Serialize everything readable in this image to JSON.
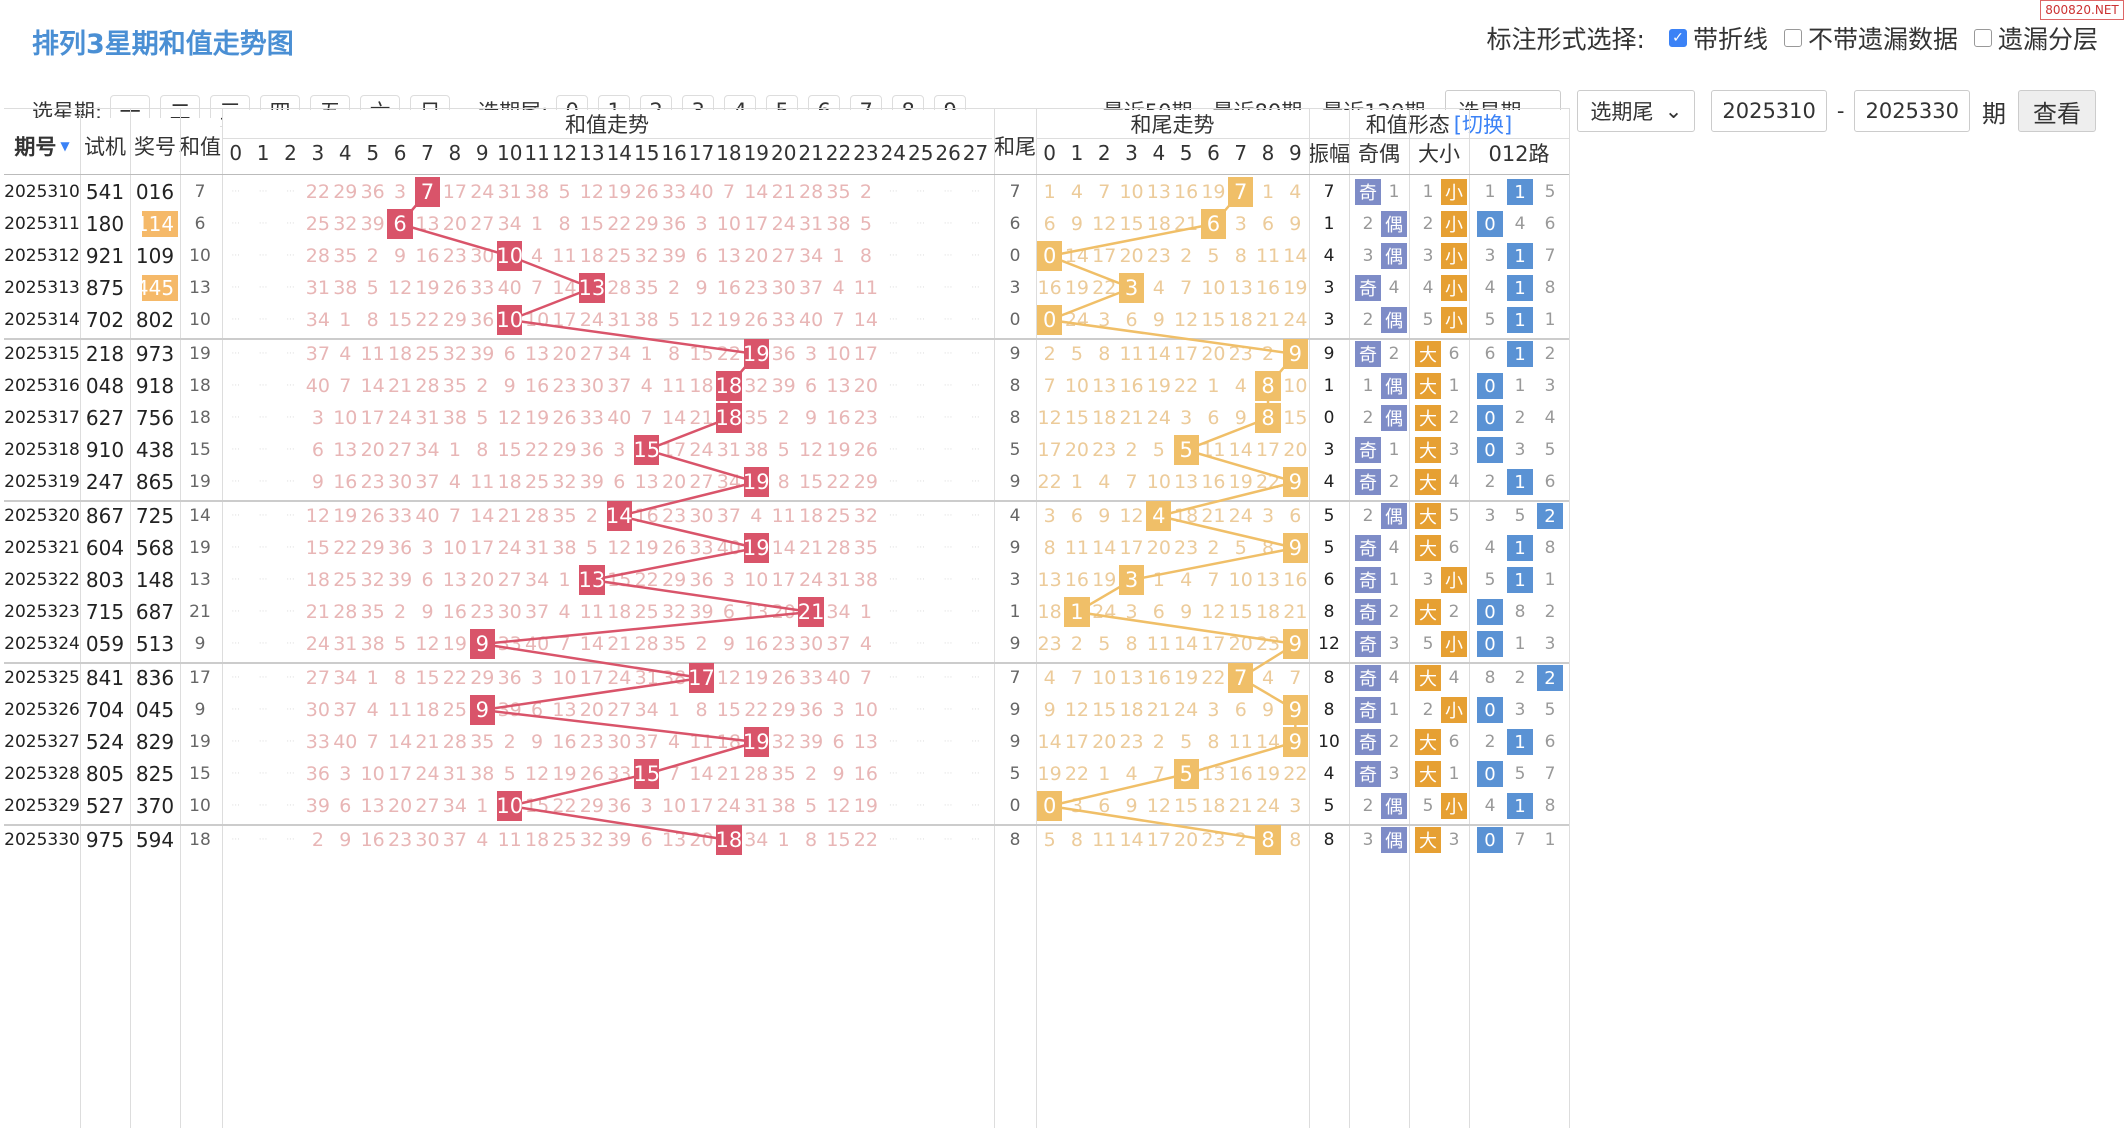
{
  "header": {
    "title": "排列3星期和值走势图",
    "options_label": "标注形式选择:",
    "opt_line": "带折线",
    "opt_no_missing": "不带遗漏数据",
    "opt_missing_layer": "遗漏分层",
    "watermark": "800820.NET"
  },
  "filter": {
    "week_label": "选星期:",
    "week_days": [
      "一",
      "二",
      "三",
      "四",
      "五",
      "六",
      "日"
    ],
    "tail_label": "选期尾:",
    "tails": [
      "0",
      "1",
      "2",
      "3",
      "4",
      "5",
      "6",
      "7",
      "8",
      "9"
    ],
    "quick": [
      "最近50期",
      "最近80期",
      "最近120期"
    ],
    "select_week": "选星期",
    "select_tail": "选期尾",
    "from": "2025310",
    "to": "2025330",
    "dash": "-",
    "unit": "期",
    "view": "查看"
  },
  "table": {
    "h_issue": "期号",
    "h_test": "试机",
    "h_prize": "奖号",
    "h_sum": "和值",
    "h_sumtrend": "和值走势",
    "h_tail": "和尾",
    "h_tailtrend": "和尾走势",
    "h_form": "和值形态",
    "h_switch": "[切换]",
    "h_amp": "振幅",
    "h_oe": "奇偶",
    "h_bs": "大小",
    "h_012": "012路",
    "sum_cols": [
      "0",
      "1",
      "2",
      "3",
      "4",
      "5",
      "6",
      "7",
      "8",
      "9",
      "10",
      "11",
      "12",
      "13",
      "14",
      "15",
      "16",
      "17",
      "18",
      "19",
      "20",
      "21",
      "22",
      "23",
      "24",
      "25",
      "26",
      "27"
    ],
    "tail_cols": [
      "0",
      "1",
      "2",
      "3",
      "4",
      "5",
      "6",
      "7",
      "8",
      "9"
    ],
    "rows": [
      {
        "issue": "2025310",
        "test": "541",
        "prize": "016",
        "sum": 7,
        "tail": 7,
        "amp": "7",
        "oe": "奇",
        "bs": "小",
        "r": 1
      },
      {
        "issue": "2025311",
        "test": "180",
        "prize": "114",
        "sum": 6,
        "tail": 6,
        "amp": "1",
        "oe": "偶",
        "bs": "小",
        "r": 0,
        "hl": true
      },
      {
        "issue": "2025312",
        "test": "921",
        "prize": "109",
        "sum": 10,
        "tail": 0,
        "amp": "4",
        "oe": "偶",
        "bs": "小",
        "r": 1
      },
      {
        "issue": "2025313",
        "test": "875",
        "prize": "445",
        "sum": 13,
        "tail": 3,
        "amp": "3",
        "oe": "奇",
        "bs": "小",
        "r": 1,
        "hl": true
      },
      {
        "issue": "2025314",
        "test": "702",
        "prize": "802",
        "sum": 10,
        "tail": 0,
        "amp": "3",
        "oe": "偶",
        "bs": "小",
        "r": 1
      },
      {
        "issue": "2025315",
        "test": "218",
        "prize": "973",
        "sum": 19,
        "tail": 9,
        "amp": "9",
        "oe": "奇",
        "bs": "大",
        "r": 1
      },
      {
        "issue": "2025316",
        "test": "048",
        "prize": "918",
        "sum": 18,
        "tail": 8,
        "amp": "1",
        "oe": "偶",
        "bs": "大",
        "r": 0
      },
      {
        "issue": "2025317",
        "test": "627",
        "prize": "756",
        "sum": 18,
        "tail": 8,
        "amp": "0",
        "oe": "偶",
        "bs": "大",
        "r": 0
      },
      {
        "issue": "2025318",
        "test": "910",
        "prize": "438",
        "sum": 15,
        "tail": 5,
        "amp": "3",
        "oe": "奇",
        "bs": "大",
        "r": 0
      },
      {
        "issue": "2025319",
        "test": "247",
        "prize": "865",
        "sum": 19,
        "tail": 9,
        "amp": "4",
        "oe": "奇",
        "bs": "大",
        "r": 1
      },
      {
        "issue": "2025320",
        "test": "867",
        "prize": "725",
        "sum": 14,
        "tail": 4,
        "amp": "5",
        "oe": "偶",
        "bs": "大",
        "r": 2
      },
      {
        "issue": "2025321",
        "test": "604",
        "prize": "568",
        "sum": 19,
        "tail": 9,
        "amp": "5",
        "oe": "奇",
        "bs": "大",
        "r": 1
      },
      {
        "issue": "2025322",
        "test": "803",
        "prize": "148",
        "sum": 13,
        "tail": 3,
        "amp": "6",
        "oe": "奇",
        "bs": "小",
        "r": 1
      },
      {
        "issue": "2025323",
        "test": "715",
        "prize": "687",
        "sum": 21,
        "tail": 1,
        "amp": "8",
        "oe": "奇",
        "bs": "大",
        "r": 0
      },
      {
        "issue": "2025324",
        "test": "059",
        "prize": "513",
        "sum": 9,
        "tail": 9,
        "amp": "12",
        "oe": "奇",
        "bs": "小",
        "r": 0
      },
      {
        "issue": "2025325",
        "test": "841",
        "prize": "836",
        "sum": 17,
        "tail": 7,
        "amp": "8",
        "oe": "奇",
        "bs": "大",
        "r": 2
      },
      {
        "issue": "2025326",
        "test": "704",
        "prize": "045",
        "sum": 9,
        "tail": 9,
        "amp": "8",
        "oe": "奇",
        "bs": "小",
        "r": 0
      },
      {
        "issue": "2025327",
        "test": "524",
        "prize": "829",
        "sum": 19,
        "tail": 9,
        "amp": "10",
        "oe": "奇",
        "bs": "大",
        "r": 1
      },
      {
        "issue": "2025328",
        "test": "805",
        "prize": "825",
        "sum": 15,
        "tail": 5,
        "amp": "4",
        "oe": "奇",
        "bs": "大",
        "r": 0
      },
      {
        "issue": "2025329",
        "test": "527",
        "prize": "370",
        "sum": 10,
        "tail": 0,
        "amp": "5",
        "oe": "偶",
        "bs": "小",
        "r": 1
      },
      {
        "issue": "2025330",
        "test": "975",
        "prize": "594",
        "sum": 18,
        "tail": 8,
        "amp": "8",
        "oe": "偶",
        "bs": "大",
        "r": 0
      }
    ]
  },
  "colors": {
    "sum_box": "#d9546a",
    "tail_box": "#f0bf68",
    "title": "#4a8fd4"
  }
}
